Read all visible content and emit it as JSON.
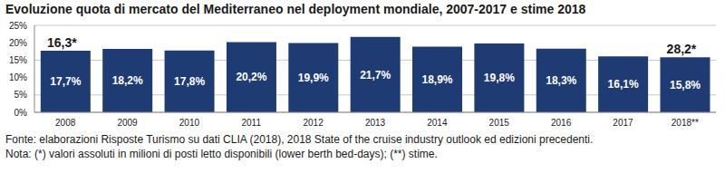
{
  "chart_data": {
    "type": "bar",
    "title": "Evoluzione quota di mercato del Mediterraneo nel deployment mondiale, 2007-2017 e stime 2018",
    "categories": [
      "2008",
      "2009",
      "2010",
      "2011",
      "2012",
      "2013",
      "2014",
      "2015",
      "2016",
      "2017",
      "2018**"
    ],
    "values": [
      17.7,
      18.2,
      17.8,
      20.2,
      19.9,
      21.7,
      18.9,
      19.8,
      18.3,
      16.1,
      15.8
    ],
    "value_labels": [
      "17,7%",
      "18,2%",
      "17,8%",
      "20,2%",
      "19,9%",
      "21,7%",
      "18,9%",
      "19,8%",
      "18,3%",
      "16,1%",
      "15,8%"
    ],
    "data_labels": true,
    "color": "#1f3b73",
    "ylim": [
      0,
      25
    ],
    "yticks": [
      {
        "value": 0,
        "label": "0%"
      },
      {
        "value": 5,
        "label": "5%"
      },
      {
        "value": 10,
        "label": "10%"
      },
      {
        "value": 15,
        "label": "15%"
      },
      {
        "value": 20,
        "label": "20%"
      },
      {
        "value": 25,
        "label": "25%"
      }
    ],
    "grid": true,
    "annotations": [
      {
        "category": "2008",
        "text": "16,3*"
      },
      {
        "category": "2018**",
        "text": "28,2*"
      }
    ],
    "source": "Fonte: elaborazioni Risposte Turismo su dati CLIA (2018), 2018 State of the cruise industry outlook ed edizioni precedenti.",
    "note": "Nota: (*) valori assoluti in milioni di posti letto disponibili (lower berth bed-days); (**) stime."
  }
}
